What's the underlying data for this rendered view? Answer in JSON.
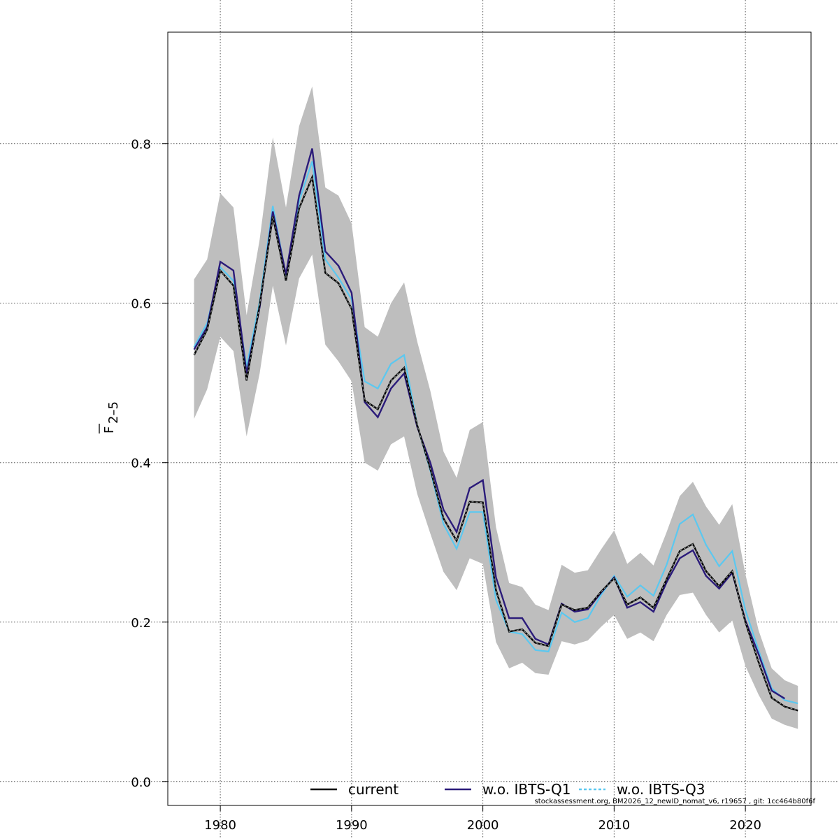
{
  "chart_data": {
    "type": "line",
    "ylabel": {
      "main": "F",
      "sub": "2–5"
    },
    "xlim": [
      1976,
      2025
    ],
    "ylim": [
      -0.03,
      0.94
    ],
    "x_ticks": [
      1980,
      1990,
      2000,
      2010,
      2020
    ],
    "y_ticks": [
      0.0,
      0.2,
      0.4,
      0.6,
      0.8
    ],
    "y_tick_labels": [
      "0.0",
      "0.2",
      "0.4",
      "0.6",
      "0.8"
    ],
    "grid": true,
    "legend": {
      "position": "bottom",
      "entries": [
        {
          "label": "current",
          "color": "#000000",
          "style": "solid"
        },
        {
          "label": "w.o. IBTS-Q1",
          "color": "#2b1b7a",
          "style": "solid"
        },
        {
          "label": "w.o. IBTS-Q3",
          "color": "#5bc8f0",
          "style": "dashed"
        }
      ]
    },
    "footnote": "stockassessment.org, BM2026_12_newID_nomat_v6, r19657 , git: 1cc464b80f6f",
    "x": [
      1978,
      1979,
      1980,
      1981,
      1982,
      1983,
      1984,
      1985,
      1986,
      1987,
      1988,
      1989,
      1990,
      1991,
      1992,
      1993,
      1994,
      1995,
      1996,
      1997,
      1998,
      1999,
      2000,
      2001,
      2002,
      2003,
      2004,
      2005,
      2006,
      2007,
      2008,
      2009,
      2010,
      2011,
      2012,
      2013,
      2014,
      2015,
      2016,
      2017,
      2018,
      2019,
      2020,
      2021,
      2022,
      2023,
      2024
    ],
    "band": {
      "name": "confidence interval",
      "color": "#bebebe",
      "upper": [
        0.63,
        0.655,
        0.738,
        0.72,
        0.585,
        0.68,
        0.808,
        0.72,
        0.822,
        0.872,
        0.745,
        0.735,
        0.7,
        0.57,
        0.558,
        0.6,
        0.626,
        0.552,
        0.49,
        0.414,
        0.381,
        0.441,
        0.451,
        0.319,
        0.249,
        0.244,
        0.222,
        0.215,
        0.272,
        0.262,
        0.265,
        0.291,
        0.315,
        0.273,
        0.287,
        0.271,
        0.313,
        0.358,
        0.376,
        0.345,
        0.322,
        0.348,
        0.26,
        0.19,
        0.142,
        0.127,
        0.12
      ],
      "lower": [
        0.455,
        0.492,
        0.558,
        0.54,
        0.433,
        0.512,
        0.622,
        0.547,
        0.631,
        0.661,
        0.548,
        0.527,
        0.502,
        0.4,
        0.39,
        0.423,
        0.433,
        0.361,
        0.311,
        0.263,
        0.24,
        0.28,
        0.273,
        0.175,
        0.142,
        0.149,
        0.136,
        0.134,
        0.176,
        0.172,
        0.177,
        0.194,
        0.209,
        0.179,
        0.187,
        0.176,
        0.209,
        0.234,
        0.237,
        0.209,
        0.187,
        0.202,
        0.145,
        0.109,
        0.079,
        0.071,
        0.066
      ]
    },
    "series": [
      {
        "name": "current",
        "color": "#000000",
        "values": [
          0.535,
          0.567,
          0.641,
          0.622,
          0.503,
          0.598,
          0.709,
          0.628,
          0.719,
          0.758,
          0.638,
          0.625,
          0.593,
          0.478,
          0.467,
          0.503,
          0.519,
          0.447,
          0.392,
          0.33,
          0.302,
          0.351,
          0.35,
          0.24,
          0.188,
          0.191,
          0.174,
          0.17,
          0.222,
          0.215,
          0.218,
          0.238,
          0.255,
          0.222,
          0.231,
          0.218,
          0.254,
          0.289,
          0.298,
          0.264,
          0.245,
          0.264,
          0.2,
          0.15,
          0.105,
          0.094,
          0.089
        ]
      },
      {
        "name": "w.o. IBTS-Q1",
        "color": "#2b1b7a",
        "values": [
          0.542,
          0.57,
          0.652,
          0.641,
          0.512,
          0.595,
          0.715,
          0.636,
          0.735,
          0.794,
          0.665,
          0.647,
          0.613,
          0.476,
          0.457,
          0.493,
          0.512,
          0.445,
          0.4,
          0.341,
          0.313,
          0.368,
          0.378,
          0.256,
          0.205,
          0.205,
          0.179,
          0.172,
          0.223,
          0.213,
          0.216,
          0.237,
          0.256,
          0.218,
          0.225,
          0.213,
          0.25,
          0.28,
          0.29,
          0.258,
          0.242,
          0.262,
          0.202,
          0.16,
          0.114,
          0.104,
          null
        ]
      },
      {
        "name": "w.o. IBTS-Q3",
        "color": "#5bc8f0",
        "values": [
          0.545,
          0.575,
          0.645,
          0.628,
          0.52,
          0.602,
          0.722,
          0.635,
          0.728,
          0.778,
          0.655,
          0.632,
          0.605,
          0.502,
          0.493,
          0.524,
          0.535,
          0.447,
          0.39,
          0.323,
          0.292,
          0.338,
          0.338,
          0.228,
          0.188,
          0.185,
          0.165,
          0.163,
          0.212,
          0.2,
          0.205,
          0.234,
          0.258,
          0.232,
          0.246,
          0.233,
          0.272,
          0.323,
          0.335,
          0.297,
          0.27,
          0.289,
          0.215,
          0.165,
          0.117,
          0.102,
          0.098
        ]
      }
    ]
  }
}
